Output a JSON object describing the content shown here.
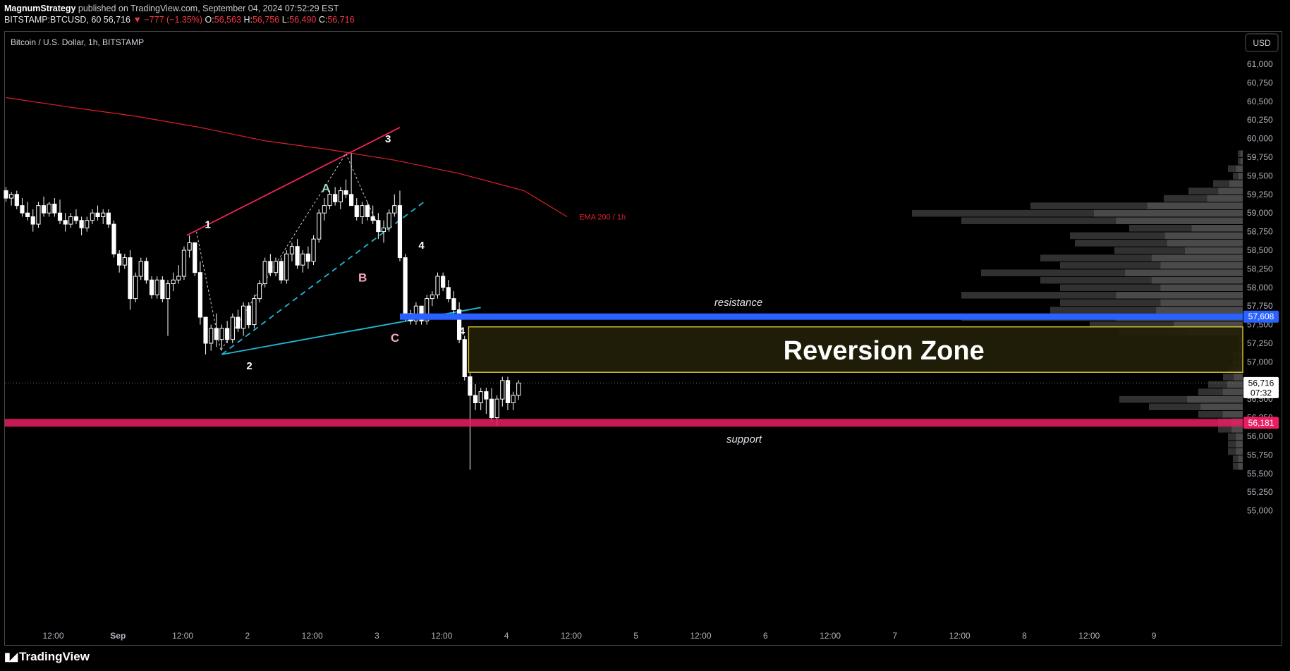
{
  "header": {
    "author": "MagnumStrategy",
    "published": "published on TradingView.com, September 04, 2024 07:52:29 EST",
    "symbol_line": "BITSTAMP:BTCUSD, 60",
    "last": "56,716",
    "change": "−777 (−1.35%)",
    "open_label": "O:",
    "open": "56,563",
    "high_label": "H:",
    "high": "56,756",
    "low_label": "L:",
    "low": "56,490",
    "close_label": "C:",
    "close": "56,716"
  },
  "legend": {
    "title": "Bitcoin / U.S. Dollar, 1h, BITSTAMP"
  },
  "currency_button": "USD",
  "footer": {
    "brand": "TradingView",
    "icon": "tradingview-logo-icon"
  },
  "colors": {
    "candle": "#ffffff",
    "ema": "#e0202a",
    "resistance": "#2962ff",
    "support": "#e91e63",
    "zone_border": "#d9c632",
    "pattern_line_a": "#f0245a",
    "pattern_line_c": "#22b8d8"
  },
  "chart_data": {
    "type": "candlestick",
    "title": "Bitcoin / U.S. Dollar, 1h, BITSTAMP",
    "ylim": [
      55000,
      61200
    ],
    "y_ticks": [
      55000,
      55250,
      55500,
      55750,
      56000,
      56250,
      56500,
      56750,
      57000,
      57250,
      57500,
      57750,
      58000,
      58250,
      58500,
      58750,
      59000,
      59250,
      59500,
      59750,
      60000,
      60250,
      60500,
      60750,
      61000
    ],
    "y_tick_labels": [
      "55,000",
      "55,250",
      "55,500",
      "55,750",
      "56,000",
      "56,250",
      "56,500",
      "56,750",
      "57,000",
      "57,250",
      "57,500",
      "57,750",
      "58,000",
      "58,250",
      "58,500",
      "58,750",
      "59,000",
      "59,250",
      "59,500",
      "59,750",
      "60,000",
      "60,250",
      "60,500",
      "60,750",
      "61,000"
    ],
    "x_ticks": [
      {
        "label": "12:00",
        "bar": 0,
        "bold": false
      },
      {
        "label": "Sep",
        "bar": 12,
        "bold": true
      },
      {
        "label": "12:00",
        "bar": 24,
        "bold": false
      },
      {
        "label": "2",
        "bar": 36,
        "bold": false
      },
      {
        "label": "12:00",
        "bar": 48,
        "bold": false
      },
      {
        "label": "3",
        "bar": 60,
        "bold": false
      },
      {
        "label": "12:00",
        "bar": 72,
        "bold": false
      },
      {
        "label": "4",
        "bar": 84,
        "bold": false
      },
      {
        "label": "12:00",
        "bar": 96,
        "bold": false
      },
      {
        "label": "5",
        "bar": 108,
        "bold": false
      },
      {
        "label": "12:00",
        "bar": 120,
        "bold": false
      },
      {
        "label": "6",
        "bar": 132,
        "bold": false
      },
      {
        "label": "12:00",
        "bar": 144,
        "bold": false
      },
      {
        "label": "7",
        "bar": 156,
        "bold": false
      },
      {
        "label": "12:00",
        "bar": 168,
        "bold": false
      },
      {
        "label": "8",
        "bar": 180,
        "bold": false
      },
      {
        "label": "12:00",
        "bar": 192,
        "bold": false
      },
      {
        "label": "9",
        "bar": 204,
        "bold": false
      }
    ],
    "candles": [
      [
        59300,
        59350,
        59150,
        59200
      ],
      [
        59200,
        59280,
        59100,
        59250
      ],
      [
        59250,
        59300,
        59050,
        59100
      ],
      [
        59100,
        59200,
        58950,
        59000
      ],
      [
        59000,
        59150,
        58900,
        58950
      ],
      [
        58950,
        59050,
        58750,
        58850
      ],
      [
        58850,
        59150,
        58800,
        59100
      ],
      [
        59100,
        59220,
        58950,
        59000
      ],
      [
        59000,
        59150,
        58950,
        59120
      ],
      [
        59120,
        59200,
        58950,
        59000
      ],
      [
        59000,
        59180,
        58850,
        58900
      ],
      [
        58900,
        59000,
        58750,
        58850
      ],
      [
        58850,
        59000,
        58800,
        58950
      ],
      [
        58950,
        59050,
        58850,
        58900
      ],
      [
        58900,
        58950,
        58700,
        58800
      ],
      [
        58800,
        58950,
        58750,
        58900
      ],
      [
        58900,
        59050,
        58850,
        59000
      ],
      [
        59000,
        59100,
        58900,
        58950
      ],
      [
        58950,
        59050,
        58850,
        59000
      ],
      [
        59000,
        59050,
        58800,
        58850
      ],
      [
        58850,
        58900,
        58400,
        58450
      ],
      [
        58450,
        58500,
        58200,
        58300
      ],
      [
        58300,
        58450,
        58250,
        58400
      ],
      [
        58400,
        58500,
        57700,
        57850
      ],
      [
        57850,
        58200,
        57800,
        58150
      ],
      [
        58150,
        58400,
        58100,
        58350
      ],
      [
        58350,
        58400,
        58050,
        58100
      ],
      [
        58100,
        58150,
        57850,
        57900
      ],
      [
        57900,
        58150,
        57850,
        58100
      ],
      [
        58100,
        58150,
        57800,
        57850
      ],
      [
        57850,
        58100,
        57350,
        58050
      ],
      [
        58050,
        58200,
        57950,
        58100
      ],
      [
        58100,
        58300,
        58050,
        58150
      ],
      [
        58150,
        58550,
        58100,
        58500
      ],
      [
        58500,
        58700,
        58400,
        58600
      ],
      [
        58600,
        58600,
        58150,
        58200
      ],
      [
        58200,
        58350,
        57500,
        57600
      ],
      [
        57600,
        57600,
        57100,
        57250
      ],
      [
        57250,
        57500,
        57150,
        57450
      ],
      [
        57450,
        57650,
        57200,
        57300
      ],
      [
        57300,
        57500,
        57150,
        57450
      ],
      [
        57450,
        57550,
        57250,
        57300
      ],
      [
        57300,
        57650,
        57250,
        57600
      ],
      [
        57600,
        57700,
        57400,
        57450
      ],
      [
        57450,
        57800,
        57350,
        57750
      ],
      [
        57750,
        57800,
        57450,
        57500
      ],
      [
        57500,
        57900,
        57450,
        57850
      ],
      [
        57850,
        58100,
        57800,
        58050
      ],
      [
        58050,
        58400,
        58000,
        58350
      ],
      [
        58350,
        58450,
        58150,
        58200
      ],
      [
        58200,
        58400,
        58150,
        58350
      ],
      [
        58350,
        58400,
        58050,
        58100
      ],
      [
        58100,
        58500,
        58050,
        58450
      ],
      [
        58450,
        58600,
        58350,
        58550
      ],
      [
        58550,
        58650,
        58250,
        58300
      ],
      [
        58300,
        58500,
        58200,
        58450
      ],
      [
        58450,
        58550,
        58250,
        58350
      ],
      [
        58350,
        58700,
        58300,
        58650
      ],
      [
        58650,
        59050,
        58600,
        59000
      ],
      [
        59000,
        59200,
        58900,
        59100
      ],
      [
        59100,
        59300,
        59050,
        59250
      ],
      [
        59250,
        59350,
        59100,
        59150
      ],
      [
        59150,
        59350,
        59050,
        59300
      ],
      [
        59300,
        59450,
        59200,
        59250
      ],
      [
        59250,
        59800,
        59150,
        59100
      ],
      [
        59100,
        59200,
        58900,
        58950
      ],
      [
        58950,
        59150,
        58850,
        59100
      ],
      [
        59100,
        59150,
        58900,
        58950
      ],
      [
        58950,
        59100,
        58850,
        58900
      ],
      [
        58900,
        59000,
        58650,
        58750
      ],
      [
        58750,
        58900,
        58600,
        58800
      ],
      [
        58800,
        59050,
        58750,
        59000
      ],
      [
        59000,
        59250,
        58950,
        59100
      ],
      [
        59100,
        59300,
        58350,
        58400
      ],
      [
        58400,
        58450,
        57550,
        57650
      ],
      [
        57650,
        57700,
        57500,
        57550
      ],
      [
        57550,
        57800,
        57500,
        57750
      ],
      [
        57750,
        57750,
        57500,
        57550
      ],
      [
        57550,
        57900,
        57500,
        57850
      ],
      [
        57850,
        57950,
        57750,
        57900
      ],
      [
        57900,
        58200,
        57850,
        58150
      ],
      [
        58150,
        58200,
        57950,
        58000
      ],
      [
        58000,
        58100,
        57800,
        57850
      ],
      [
        57850,
        57950,
        57600,
        57700
      ],
      [
        57700,
        57800,
        57250,
        57300
      ],
      [
        57300,
        57350,
        56750,
        56800
      ],
      [
        56800,
        56850,
        55550,
        56550
      ],
      [
        56550,
        56700,
        56350,
        56450
      ],
      [
        56450,
        56650,
        56350,
        56600
      ],
      [
        56600,
        56650,
        56300,
        56500
      ],
      [
        56500,
        56650,
        56200,
        56250
      ],
      [
        56250,
        56550,
        56150,
        56500
      ],
      [
        56500,
        56800,
        56400,
        56750
      ],
      [
        56750,
        56800,
        56350,
        56450
      ],
      [
        56450,
        56600,
        56350,
        56550
      ],
      [
        56550,
        56756,
        56490,
        56716
      ]
    ],
    "ema_200_1h": [
      [
        0,
        60550
      ],
      [
        12,
        60420
      ],
      [
        24,
        60300
      ],
      [
        36,
        60150
      ],
      [
        48,
        59970
      ],
      [
        60,
        59850
      ],
      [
        72,
        59710
      ],
      [
        84,
        59530
      ],
      [
        96,
        59300
      ],
      [
        104,
        58950
      ]
    ],
    "ema_label": "EMA 200 / 1h",
    "levels": {
      "resistance": {
        "value": 57608,
        "label": "57,608",
        "text": "resistance"
      },
      "support": {
        "value": 56181,
        "label": "56,181",
        "text": "support"
      },
      "current": {
        "value": 56716,
        "label": "56,716",
        "countdown": "07:32"
      }
    },
    "reversion_zone": {
      "top": 57470,
      "bottom": 56860,
      "label": "Reversion Zone",
      "start_bar": 86
    },
    "wave_labels": [
      {
        "text": "1",
        "bar": 37.4,
        "price": 58800,
        "color": "#ffffff"
      },
      {
        "text": "2",
        "bar": 45.1,
        "price": 56900,
        "color": "#ffffff"
      },
      {
        "text": "3",
        "bar": 70.8,
        "price": 59950,
        "color": "#ffffff"
      },
      {
        "text": "4",
        "bar": 77.0,
        "price": 58520,
        "color": "#ffffff"
      },
      {
        "text": "4",
        "bar": 84.5,
        "price": 57370,
        "color": "#ffffff"
      }
    ],
    "pattern_labels": [
      {
        "text": "A",
        "bar": 59.3,
        "price": 59280,
        "color": "#9fd8c2"
      },
      {
        "text": "B",
        "bar": 66.1,
        "price": 58080,
        "color": "#f7a7bf"
      },
      {
        "text": "C",
        "bar": 72.1,
        "price": 57270,
        "color": "#f7a7bf"
      }
    ],
    "volume_profile": [
      [
        59800,
        0.01
      ],
      [
        59700,
        0.01
      ],
      [
        59600,
        0.03
      ],
      [
        59500,
        0.02
      ],
      [
        59400,
        0.06
      ],
      [
        59300,
        0.11
      ],
      [
        59200,
        0.16
      ],
      [
        59100,
        0.43
      ],
      [
        59000,
        0.67
      ],
      [
        58900,
        0.57
      ],
      [
        58800,
        0.23
      ],
      [
        58700,
        0.35
      ],
      [
        58600,
        0.34
      ],
      [
        58500,
        0.26
      ],
      [
        58400,
        0.41
      ],
      [
        58300,
        0.37
      ],
      [
        58200,
        0.53
      ],
      [
        58100,
        0.41
      ],
      [
        58000,
        0.37
      ],
      [
        57900,
        0.57
      ],
      [
        57800,
        0.37
      ],
      [
        57700,
        0.39
      ],
      [
        57600,
        0.57
      ],
      [
        57500,
        0.31
      ],
      [
        57400,
        0.25
      ],
      [
        57300,
        0.01
      ],
      [
        57200,
        0.01
      ],
      [
        57100,
        0.02
      ],
      [
        57000,
        0.02
      ],
      [
        56900,
        0.03
      ],
      [
        56800,
        0.04
      ],
      [
        56700,
        0.07
      ],
      [
        56600,
        0.09
      ],
      [
        56500,
        0.25
      ],
      [
        56400,
        0.19
      ],
      [
        56300,
        0.09
      ],
      [
        56200,
        0.05
      ],
      [
        56100,
        0.05
      ],
      [
        56000,
        0.03
      ],
      [
        55900,
        0.03
      ],
      [
        55800,
        0.03
      ],
      [
        55700,
        0.02
      ],
      [
        55600,
        0.02
      ]
    ]
  }
}
